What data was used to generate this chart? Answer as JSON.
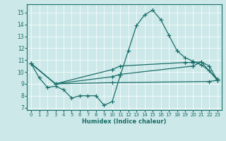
{
  "xlabel": "Humidex (Indice chaleur)",
  "bg_color": "#cce8e8",
  "line_color": "#1a6e6a",
  "xlim": [
    -0.5,
    23.5
  ],
  "ylim": [
    6.8,
    15.7
  ],
  "yticks": [
    7,
    8,
    9,
    10,
    11,
    12,
    13,
    14,
    15
  ],
  "xticks": [
    0,
    1,
    2,
    3,
    4,
    5,
    6,
    7,
    8,
    9,
    10,
    11,
    12,
    13,
    14,
    15,
    16,
    17,
    18,
    19,
    20,
    21,
    22,
    23
  ],
  "curve1_x": [
    0,
    1,
    2,
    3,
    4,
    5,
    6,
    7,
    8,
    9,
    10,
    11,
    12,
    13,
    14,
    15,
    16,
    17,
    18,
    19,
    20,
    21,
    22,
    23
  ],
  "curve1_y": [
    10.7,
    9.5,
    8.7,
    8.8,
    8.5,
    7.8,
    8.0,
    8.0,
    8.0,
    7.2,
    7.5,
    9.7,
    11.8,
    13.9,
    14.8,
    15.2,
    14.4,
    13.1,
    11.8,
    11.2,
    10.9,
    10.6,
    10.1,
    9.4
  ],
  "curve2_x": [
    0,
    3,
    10,
    22,
    23
  ],
  "curve2_y": [
    10.7,
    9.0,
    9.1,
    9.2,
    9.3
  ],
  "curve3_x": [
    0,
    3,
    10,
    11,
    20,
    21,
    23
  ],
  "curve3_y": [
    10.7,
    9.0,
    9.6,
    9.8,
    10.5,
    10.85,
    9.3
  ],
  "curve4_x": [
    0,
    3,
    10,
    11,
    19,
    20,
    21,
    22,
    23
  ],
  "curve4_y": [
    10.7,
    9.0,
    10.2,
    10.5,
    10.8,
    10.8,
    10.85,
    10.5,
    9.3
  ]
}
